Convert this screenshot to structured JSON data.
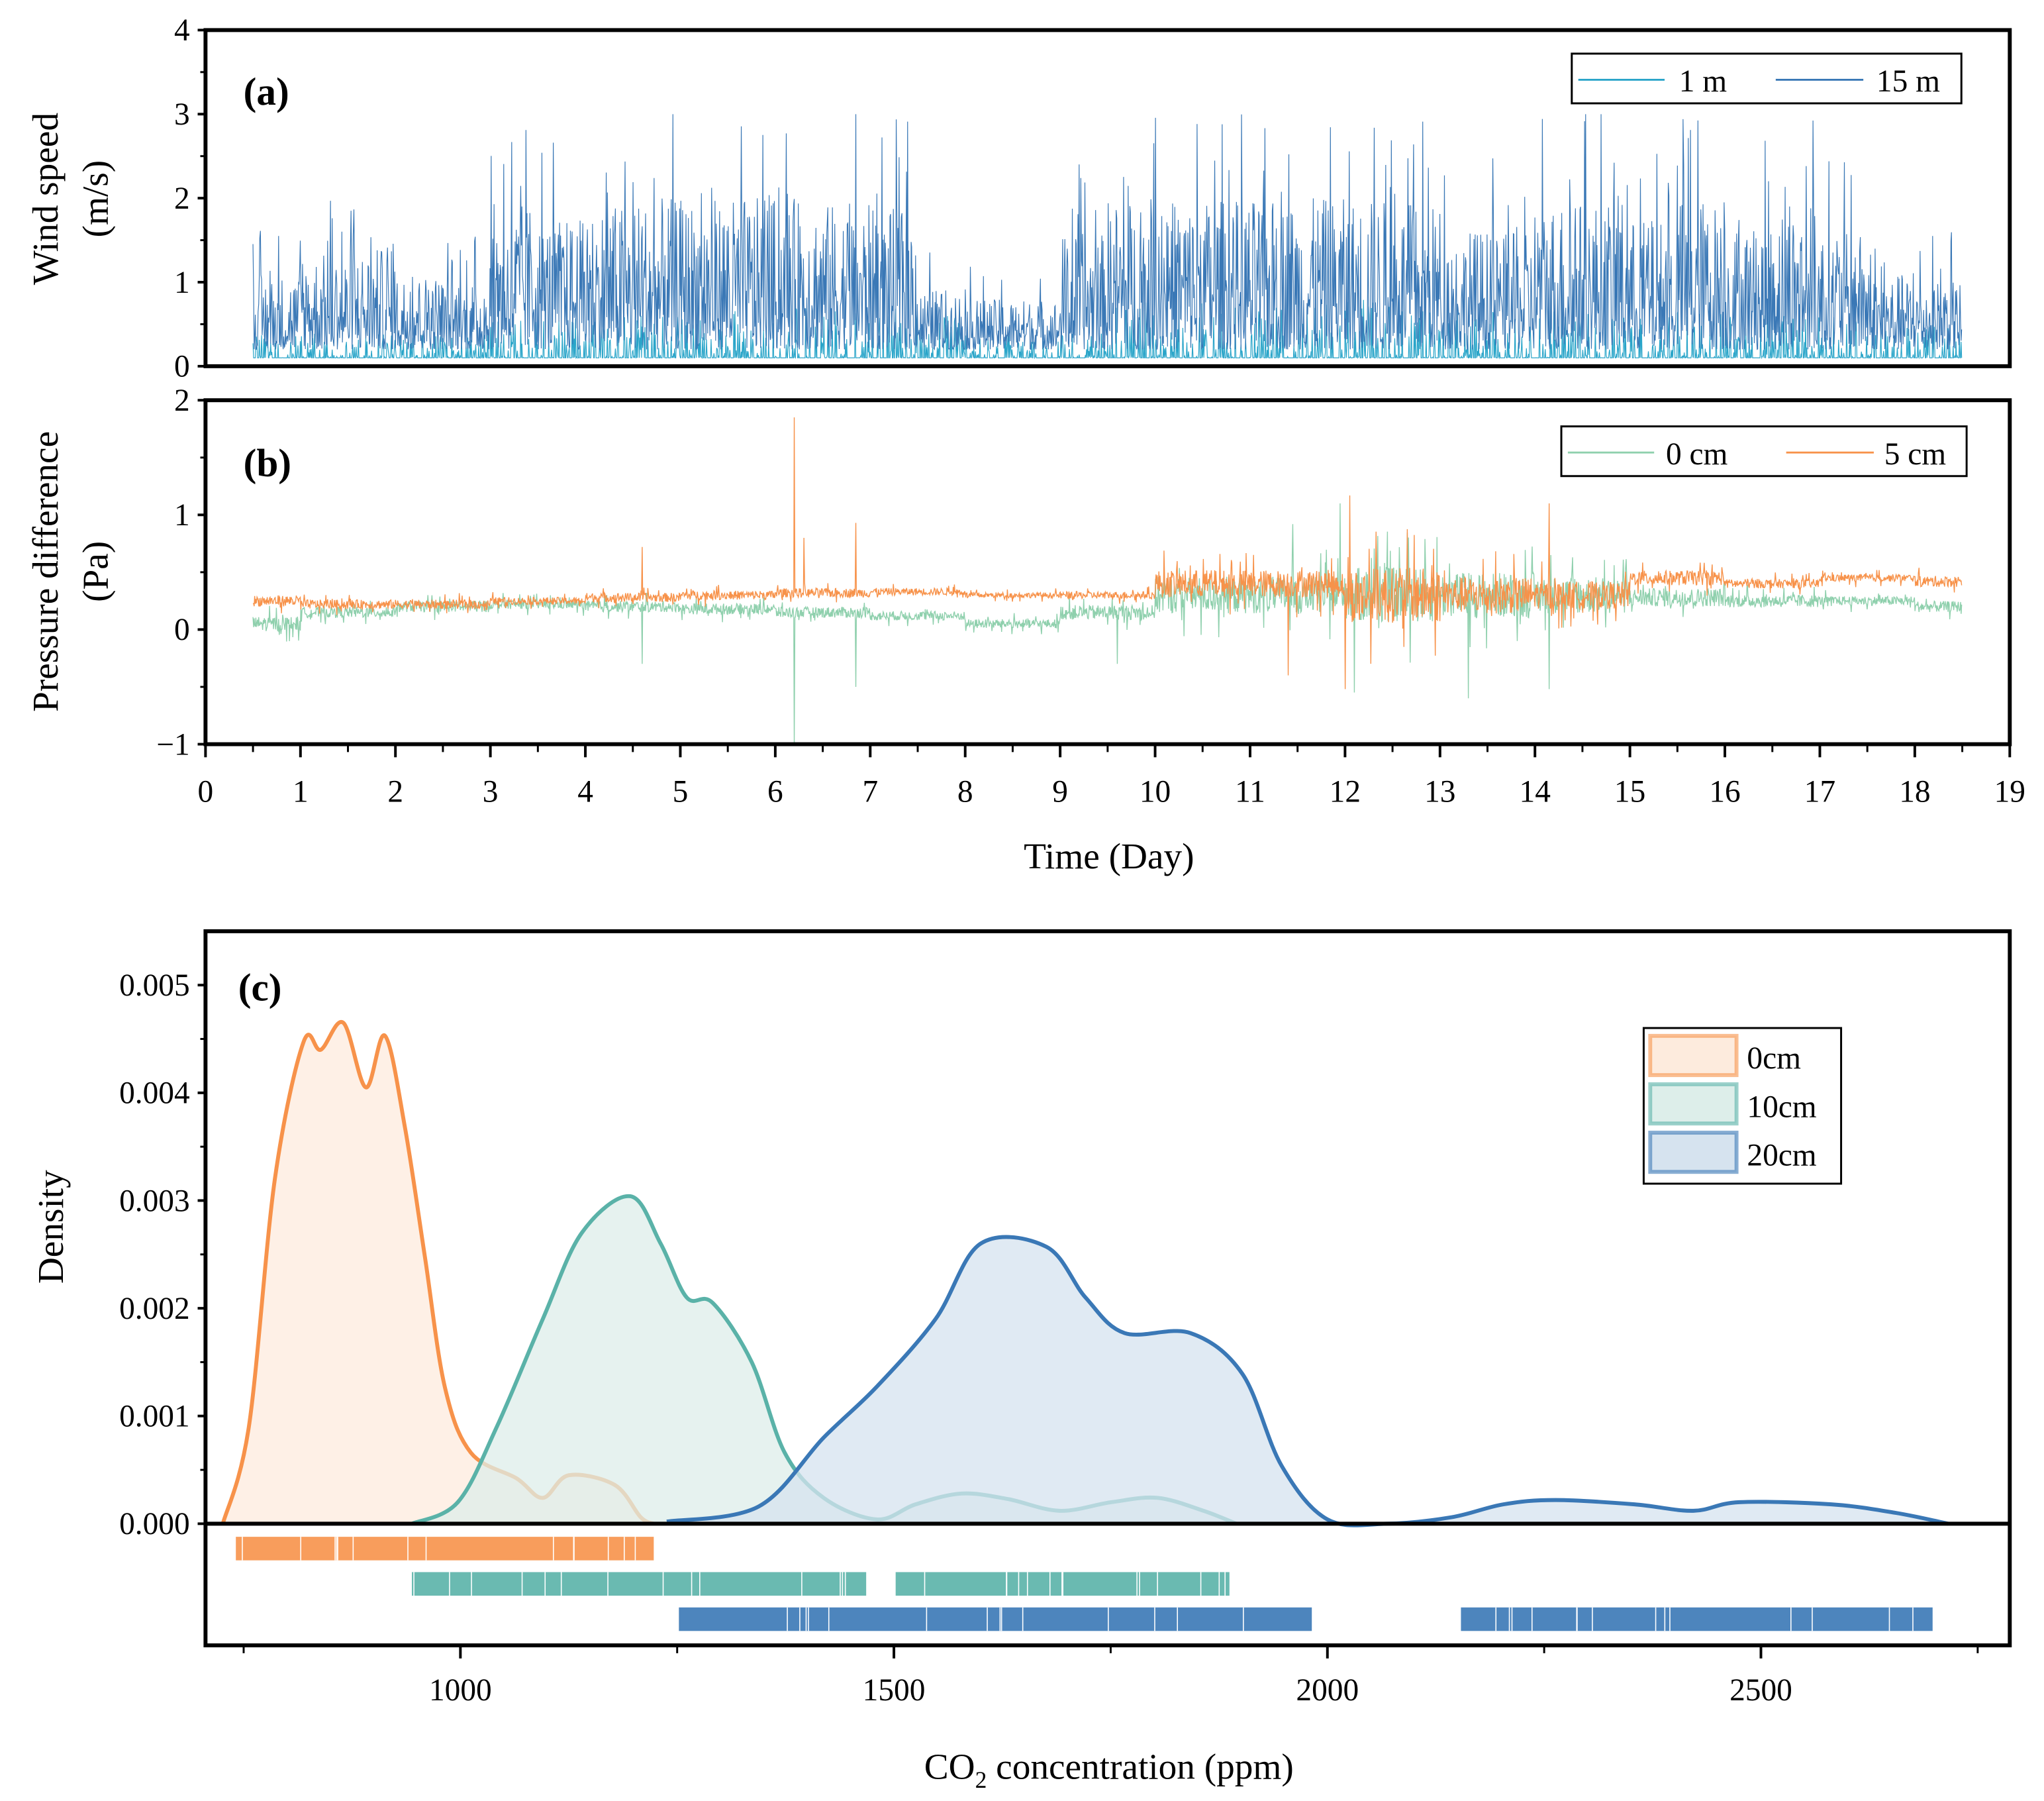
{
  "chart_data": [
    {
      "panel": "(a)",
      "type": "line",
      "ylabel": [
        "Wind speed",
        "(m/s)"
      ],
      "ylim": [
        0,
        4
      ],
      "yticks": [
        "0",
        "1",
        "2",
        "3",
        "4"
      ],
      "xlim": [
        0,
        19
      ],
      "series": [
        {
          "name": "1 m",
          "color": "#2aa5c9",
          "base": 0.1,
          "envelope": [
            0.4,
            0.3,
            0.3,
            0.3,
            0.3,
            0.5,
            0.5,
            0.5,
            0.5,
            0.5,
            0.6,
            0.6,
            0.6,
            0.6,
            0.5,
            0.3,
            0.2,
            0.3,
            0.7,
            0.7,
            0.6,
            0.6,
            0.7,
            0.7,
            0.6,
            0.6,
            0.6,
            0.6,
            0.6,
            0.5,
            0.6,
            0.6,
            0.5,
            0.5,
            0.4,
            0.4
          ]
        },
        {
          "name": "15 m",
          "color": "#3a78b6",
          "base": 0.2,
          "envelope": [
            1.5,
            1.9,
            2.0,
            1.5,
            1.4,
            2.9,
            2.6,
            2.9,
            3.0,
            3.0,
            3.0,
            3.0,
            2.9,
            2.8,
            1.2,
            1.0,
            1.0,
            2.3,
            3.0,
            3.0,
            3.0,
            3.0,
            3.0,
            3.0,
            2.9,
            2.4,
            2.3,
            3.0,
            3.0,
            2.6,
            3.0,
            2.5,
            2.9,
            2.3,
            1.5,
            1.4
          ]
        }
      ],
      "envelope_start_day": 0.5,
      "envelope_step_day": 0.5,
      "end_day": 18.5
    },
    {
      "panel": "(b)",
      "type": "line",
      "ylabel": [
        "Pressure difference",
        "(Pa)"
      ],
      "ylim": [
        -1,
        2
      ],
      "yticks": [
        "−1",
        "0",
        "1",
        "2"
      ],
      "xlim": [
        0,
        19
      ],
      "xticks": [
        "0",
        "1",
        "2",
        "3",
        "4",
        "5",
        "6",
        "7",
        "8",
        "9",
        "10",
        "11",
        "12",
        "13",
        "14",
        "15",
        "16",
        "17",
        "18",
        "19"
      ],
      "xlabel": "Time (Day)",
      "series": [
        {
          "name": "0 cm",
          "color": "#8fd0ad",
          "baseline": [
            0.05,
            0.15,
            0.2,
            0.22,
            0.2,
            0.18,
            0.15,
            0.12,
            0.05,
            0.15,
            0.3,
            0.3,
            0.3,
            0.3,
            0.3,
            0.28,
            0.25,
            0.25,
            0.2
          ],
          "noise": [
            0.08,
            0.06,
            0.06,
            0.05,
            0.06,
            0.06,
            0.06,
            0.05,
            0.05,
            0.08,
            0.2,
            0.2,
            0.3,
            0.25,
            0.2,
            0.1,
            0.07,
            0.05,
            0.06
          ],
          "spikes": [
            [
              6.2,
              -1.0
            ],
            [
              6.85,
              -0.5
            ],
            [
              4.6,
              -0.3
            ],
            [
              11.45,
              0.92
            ],
            [
              11.95,
              1.1
            ],
            [
              12.1,
              -0.55
            ],
            [
              13.3,
              1.22
            ],
            [
              13.3,
              -0.6
            ],
            [
              14.15,
              -0.52
            ],
            [
              9.6,
              -0.3
            ]
          ]
        },
        {
          "name": "5 cm",
          "color": "#f7924a",
          "baseline": [
            0.25,
            0.22,
            0.22,
            0.25,
            0.28,
            0.3,
            0.32,
            0.33,
            0.3,
            0.3,
            0.4,
            0.4,
            0.3,
            0.3,
            0.3,
            0.45,
            0.4,
            0.45,
            0.42
          ],
          "noise": [
            0.06,
            0.05,
            0.05,
            0.04,
            0.05,
            0.05,
            0.05,
            0.04,
            0.03,
            0.04,
            0.15,
            0.15,
            0.3,
            0.2,
            0.15,
            0.08,
            0.05,
            0.04,
            0.06
          ],
          "spikes": [
            [
              6.2,
              1.85
            ],
            [
              6.3,
              0.8
            ],
            [
              6.85,
              0.93
            ],
            [
              4.6,
              0.72
            ],
            [
              12.05,
              1.17
            ],
            [
              12.0,
              -0.52
            ],
            [
              14.15,
              1.1
            ],
            [
              11.4,
              -0.4
            ]
          ]
        }
      ]
    },
    {
      "panel": "(c)",
      "type": "area",
      "title": "",
      "xlabel": "CO",
      "xlabel_sub": "2",
      "xlabel_rest": " concentration (ppm)",
      "ylabel": "Density",
      "xlim": [
        706,
        2787
      ],
      "ylim": [
        0,
        0.0055
      ],
      "xticks": [
        1000,
        1500,
        2000,
        2500
      ],
      "xtick_labels": [
        "1000",
        "1500",
        "2000",
        "2500"
      ],
      "yticks": [
        0,
        0.001,
        0.002,
        0.003,
        0.004,
        0.005
      ],
      "ytick_labels": [
        "0.000",
        "0.001",
        "0.002",
        "0.003",
        "0.004",
        "0.005"
      ],
      "legend_position": "top-right",
      "series": [
        {
          "name": "0cm",
          "color": "#f7924a",
          "fill": "#fdebdd",
          "x": [
            726,
            756,
            786,
            819,
            839,
            865,
            891,
            913,
            936,
            959,
            982,
            1012,
            1065,
            1095,
            1125,
            1178,
            1208,
            1223
          ],
          "y": [
            0,
            0.0009,
            0.0032,
            0.00447,
            0.0044,
            0.00465,
            0.00405,
            0.00453,
            0.00368,
            0.00248,
            0.00127,
            0.00066,
            0.00042,
            0.00024,
            0.00045,
            0.00036,
            6e-05,
            0
          ],
          "rug": [
            [
              741,
              1223
            ]
          ]
        },
        {
          "name": "10cm",
          "color": "#5ab2a8",
          "fill": "#ddeeea",
          "x": [
            944,
            997,
            1042,
            1095,
            1140,
            1196,
            1231,
            1261,
            1291,
            1336,
            1374,
            1419,
            1480,
            1525,
            1578,
            1631,
            1691,
            1751,
            1804,
            1857,
            1895
          ],
          "y": [
            0,
            0.0002,
            0.0009,
            0.0019,
            0.0027,
            0.00304,
            0.0026,
            0.0021,
            0.00205,
            0.0015,
            0.00066,
            0.00024,
            4e-05,
            0.00018,
            0.00028,
            0.00023,
            0.00012,
            0.0002,
            0.00024,
            0.00012,
            0
          ],
          "rug": [
            [
              944,
              1468
            ],
            [
              1502,
              1887
            ]
          ]
        },
        {
          "name": "20cm",
          "color": "#3a78b6",
          "fill": "#d6e3ef",
          "x": [
            1238,
            1344,
            1419,
            1480,
            1548,
            1600,
            1676,
            1721,
            1766,
            1842,
            1902,
            1947,
            2000,
            2068,
            2143,
            2203,
            2263,
            2354,
            2422,
            2475,
            2581,
            2656,
            2716
          ],
          "y": [
            2e-05,
            0.00016,
            0.0008,
            0.00127,
            0.0019,
            0.0026,
            0.00257,
            0.0021,
            0.00177,
            0.00177,
            0.00139,
            0.00054,
            4e-05,
            0,
            6e-05,
            0.00018,
            0.00022,
            0.00018,
            0.00012,
            0.0002,
            0.00018,
            0.0001,
            0
          ],
          "rug": [
            [
              1252,
              1982
            ],
            [
              2154,
              2698
            ]
          ]
        }
      ]
    }
  ]
}
